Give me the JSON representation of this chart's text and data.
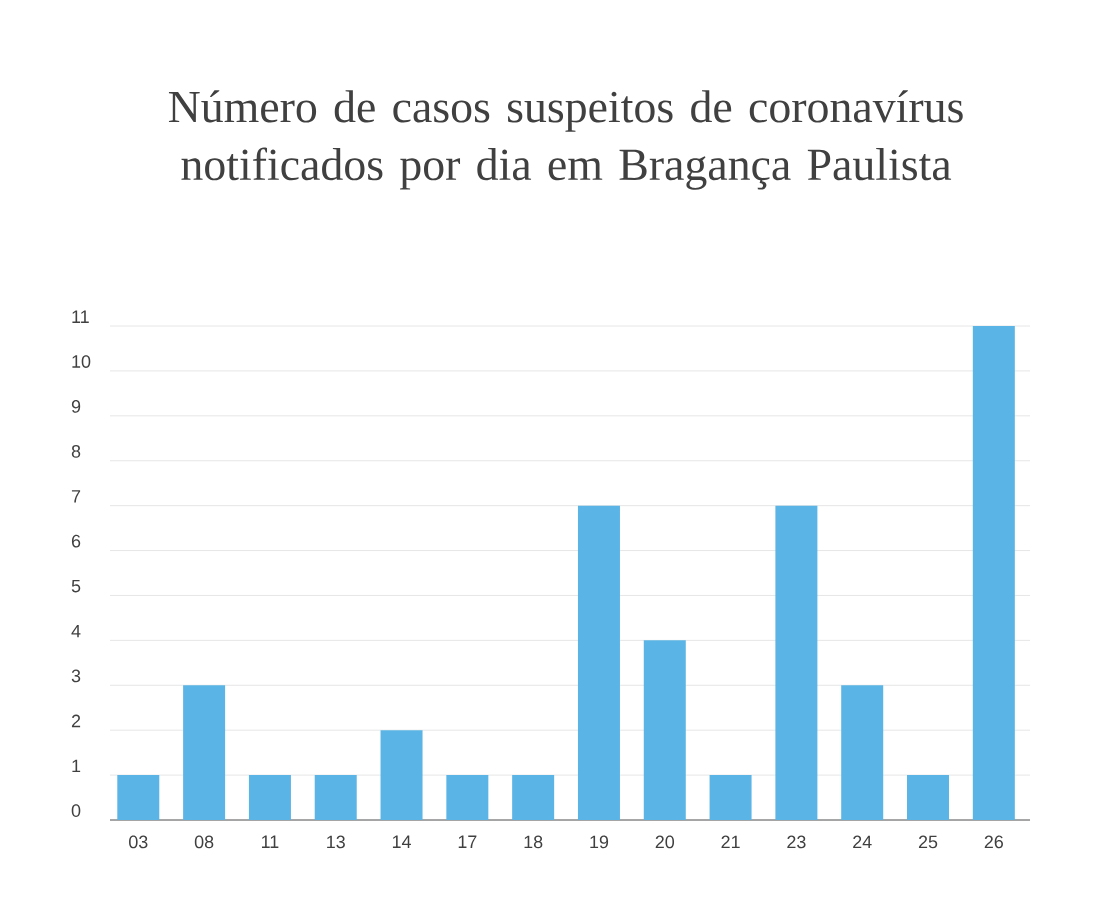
{
  "chart_data": {
    "type": "bar",
    "title": "Número de casos suspeitos de coronavírus notificados por dia em Bragança Paulista",
    "categories": [
      "03",
      "08",
      "11",
      "13",
      "14",
      "17",
      "18",
      "19",
      "20",
      "21",
      "23",
      "24",
      "25",
      "26"
    ],
    "values": [
      1,
      3,
      1,
      1,
      2,
      1,
      1,
      7,
      4,
      1,
      7,
      3,
      1,
      11
    ],
    "color": "#5ab4e5",
    "ylim": [
      0,
      11
    ],
    "yticks": [
      0,
      1,
      2,
      3,
      4,
      5,
      6,
      7,
      8,
      9,
      10,
      11
    ],
    "grid": "y"
  }
}
